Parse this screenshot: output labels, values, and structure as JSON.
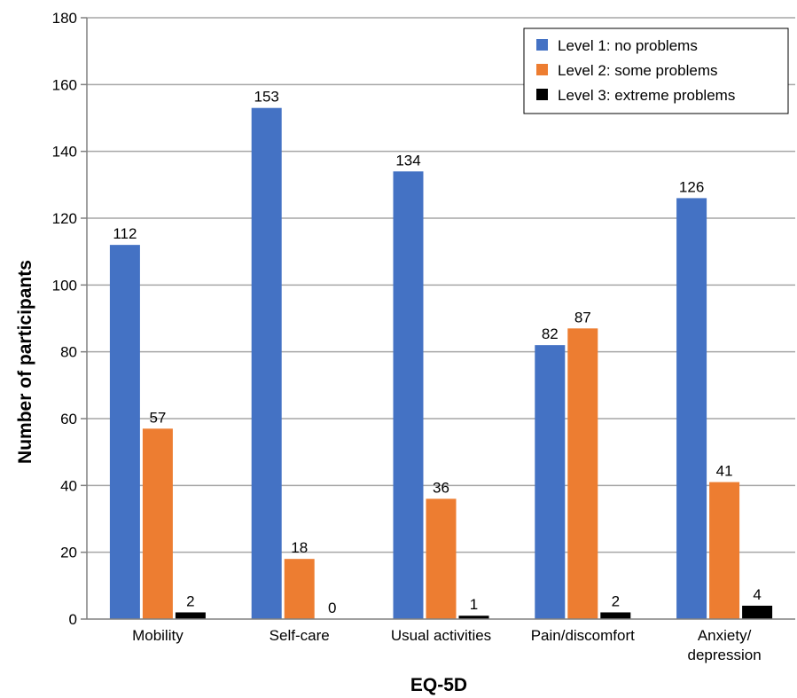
{
  "chart_data": {
    "type": "bar",
    "categories": [
      [
        "Mobility"
      ],
      [
        "Self-care"
      ],
      [
        "Usual activities"
      ],
      [
        "Pain/discomfort"
      ],
      [
        "Anxiety/",
        "depression"
      ]
    ],
    "series": [
      {
        "name": "Level 1: no problems",
        "color": "#4472C4",
        "values": [
          112,
          153,
          134,
          82,
          126
        ]
      },
      {
        "name": "Level 2: some problems",
        "color": "#ED7D31",
        "values": [
          57,
          18,
          36,
          87,
          41
        ]
      },
      {
        "name": "Level 3: extreme problems",
        "color": "#000000",
        "values": [
          2,
          0,
          1,
          2,
          4
        ]
      }
    ],
    "xlabel": "EQ-5D",
    "ylabel": "Number of participants",
    "ylim": [
      0,
      180
    ],
    "yticks": [
      0,
      20,
      40,
      60,
      80,
      100,
      120,
      140,
      160,
      180
    ],
    "grid": true,
    "legend_position": "top-right"
  }
}
